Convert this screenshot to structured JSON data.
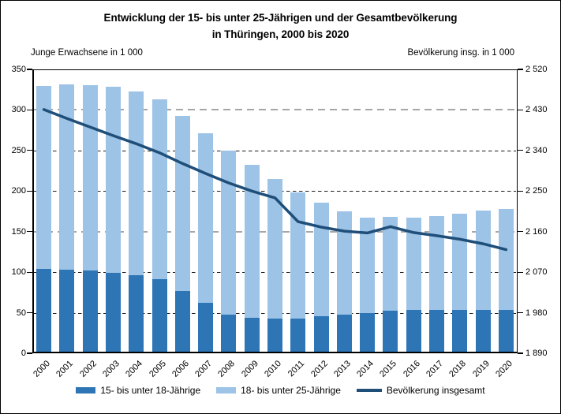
{
  "title": {
    "line1": "Entwicklung der 15- bis unter 25-Jährigen und der Gesamtbevölkerung",
    "line2": "in Thüringen, 2000 bis 2020"
  },
  "axes": {
    "left_caption": "Junge Erwachsene in 1 000",
    "right_caption": "Bevölkerung insg. in 1 000"
  },
  "legend": [
    {
      "label": "15- bis unter 18-Jährige",
      "swatch": "bar",
      "color": "#2E75B6"
    },
    {
      "label": "18- bis unter 25-Jährige",
      "swatch": "bar",
      "color": "#9DC3E6"
    },
    {
      "label": "Bevölkerung insgesamt",
      "swatch": "line",
      "color": "#1F4E79"
    }
  ],
  "colors": {
    "bar_dark": "#2E75B6",
    "bar_light": "#9DC3E6",
    "line": "#1F4E79",
    "grid_gray": "#A6A6A6",
    "grid_dark": "#1A1A1A",
    "axis": "#000000",
    "background": "#FFFFFF"
  },
  "chart_data": {
    "type": "bar",
    "subtype": "stacked-bars-with-secondary-axis-line",
    "title": "Entwicklung der 15- bis unter 25-Jährigen und der Gesamtbevölkerung in Thüringen, 2000 bis 2020",
    "categories": [
      "2000",
      "2001",
      "2002",
      "2003",
      "2004",
      "2005",
      "2006",
      "2007",
      "2008",
      "2009",
      "2010",
      "2011",
      "2012",
      "2013",
      "2014",
      "2015",
      "2016",
      "2017",
      "2018",
      "2019",
      "2020"
    ],
    "series": [
      {
        "name": "15- bis unter 18-Jährige",
        "chart": "bar-stacked",
        "axis": "left",
        "color": "#2E75B6",
        "values": [
          102,
          101,
          100,
          97,
          94,
          89,
          75,
          60,
          46,
          42,
          41,
          41,
          44,
          46,
          48,
          51,
          52,
          52,
          52,
          52,
          52
        ]
      },
      {
        "name": "18- bis unter 25-Jährige",
        "chart": "bar-stacked",
        "axis": "left",
        "color": "#9DC3E6",
        "values": [
          226,
          229,
          229,
          230,
          227,
          222,
          216,
          209,
          202,
          188,
          172,
          155,
          140,
          127,
          117,
          115,
          113,
          115,
          118,
          122,
          124
        ]
      },
      {
        "name": "Bevölkerung insgesamt",
        "chart": "line",
        "axis": "right",
        "color": "#1F4E79",
        "values": [
          2431,
          2411,
          2392,
          2373,
          2355,
          2335,
          2311,
          2289,
          2268,
          2250,
          2235,
          2182,
          2170,
          2161,
          2157,
          2171,
          2158,
          2151,
          2143,
          2133,
          2120
        ]
      }
    ],
    "left_axis": {
      "caption": "Junge Erwachsene in 1 000",
      "min": 0,
      "max": 350,
      "step": 50,
      "tick_labels": [
        "350",
        "300",
        "250",
        "200",
        "150",
        "100",
        "50",
        "0"
      ]
    },
    "right_axis": {
      "caption": "Bevölkerung insg. in 1 000",
      "min": 1890,
      "max": 2520,
      "step": 90,
      "tick_labels": [
        "2 520",
        "2 430",
        "2 340",
        "2 250",
        "2 160",
        "2 070",
        "1 980",
        "1 890"
      ]
    },
    "grid": {
      "style": "dashed",
      "gray_levels": [
        300,
        150
      ],
      "dark_levels": [
        250,
        200,
        100,
        50
      ]
    },
    "legend_position": "bottom",
    "x_label_rotation_deg": -45
  }
}
